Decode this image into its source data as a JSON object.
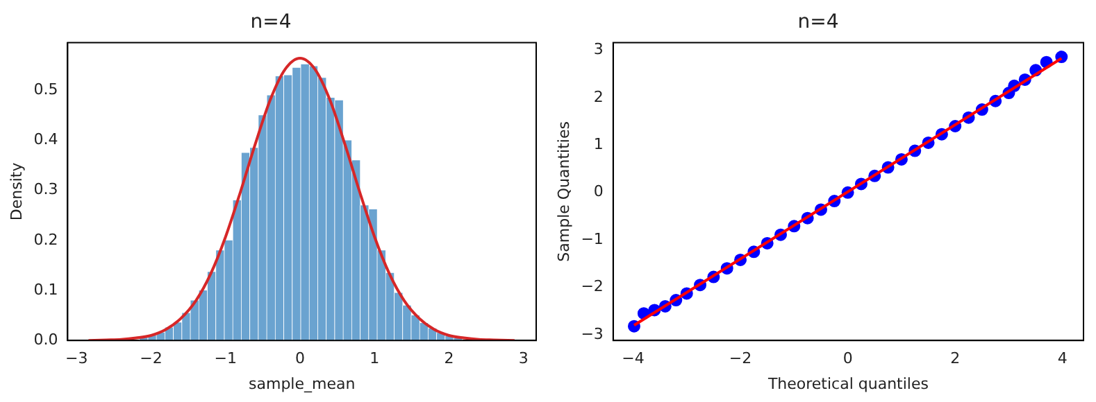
{
  "chart_data": [
    {
      "type": "histogram",
      "title": "n=4",
      "xlabel": "sample_mean",
      "ylabel": "Density",
      "color": "#6aa3d0",
      "bins": [
        -2.84,
        -2.726,
        -2.612,
        -2.498,
        -2.384,
        -2.27,
        -2.156,
        -2.042,
        -1.928,
        -1.814,
        -1.7,
        -1.586,
        -1.472,
        -1.358,
        -1.244,
        -1.13,
        -1.016,
        -0.902,
        -0.788,
        -0.674,
        -0.56,
        -0.446,
        -0.332,
        -0.218,
        -0.104,
        0.01,
        0.124,
        0.238,
        0.352,
        0.466,
        0.58,
        0.694,
        0.808,
        0.922,
        1.036,
        1.15,
        1.264,
        1.378,
        1.492,
        1.606,
        1.72,
        1.834,
        1.948,
        2.062,
        2.176,
        2.29,
        2.404,
        2.518,
        2.632,
        2.746,
        2.86
      ],
      "values": [
        0,
        0,
        0,
        0.001,
        null,
        null,
        0.007,
        0.011,
        0.016,
        0.026,
        0.036,
        0.055,
        0.08,
        0.1,
        0.137,
        0.18,
        0.2,
        0.28,
        0.375,
        0.385,
        0.45,
        0.49,
        0.528,
        0.53,
        0.545,
        0.552,
        0.548,
        0.525,
        0.485,
        0.48,
        0.4,
        0.36,
        0.27,
        0.262,
        0.18,
        0.135,
        0.095,
        0.07,
        0.05,
        0.035,
        0.024,
        0.015,
        0.009,
        0.005,
        null,
        null,
        0.001,
        0,
        0,
        0
      ],
      "series": [
        {
          "type": "line",
          "color": "#d62728",
          "x": [
            -2.84,
            -2.6,
            -2.4,
            -2.2,
            -2.0,
            -1.8,
            -1.6,
            -1.4,
            -1.2,
            -1.0,
            -0.8,
            -0.6,
            -0.4,
            -0.2,
            0,
            0.2,
            0.4,
            0.6,
            0.8,
            1.0,
            1.2,
            1.4,
            1.6,
            1.8,
            2.0,
            2.2,
            2.4,
            2.6,
            2.88
          ],
          "values": [
            0,
            0.001,
            0.002,
            0.005,
            0.01,
            0.022,
            0.044,
            0.079,
            0.133,
            0.207,
            0.297,
            0.393,
            0.481,
            0.542,
            0.564,
            0.542,
            0.481,
            0.393,
            0.297,
            0.207,
            0.133,
            0.079,
            0.044,
            0.022,
            0.01,
            0.005,
            0.002,
            0.001,
            0
          ]
        }
      ],
      "xlim": [
        -3.12,
        3.17
      ],
      "ylim": [
        0,
        0.595
      ],
      "xticks": [
        {
          "value": -3,
          "label": "−3"
        },
        {
          "value": -2,
          "label": "−2"
        },
        {
          "value": -1,
          "label": "−1"
        },
        0,
        1,
        2,
        3
      ],
      "yticks": [
        {
          "value": 0,
          "label": "0.0"
        },
        0.1,
        0.2,
        0.3,
        0.4,
        0.5
      ],
      "grid": false,
      "legend": false
    },
    {
      "type": "scatter",
      "title": "n=4",
      "xlabel": "Theoretical quantiles",
      "ylabel": "Sample Quantities",
      "series": [
        {
          "type": "scatter",
          "color": "#0000ff",
          "marker": "circle",
          "x": [
            -3.98,
            -3.8,
            -3.6,
            -3.4,
            -3.2,
            -3.0,
            -2.75,
            -2.5,
            -2.25,
            -2,
            -1.75,
            -1.5,
            -1.25,
            -1,
            -0.75,
            -0.5,
            -0.25,
            0,
            0.25,
            0.5,
            0.75,
            1,
            1.25,
            1.5,
            1.75,
            2,
            2.25,
            2.5,
            2.75,
            3,
            3.1,
            3.3,
            3.5,
            3.7,
            3.98
          ],
          "values": [
            -2.82,
            -2.55,
            -2.48,
            -2.4,
            -2.27,
            -2.13,
            -1.95,
            -1.78,
            -1.6,
            -1.42,
            -1.25,
            -1.07,
            -0.89,
            -0.71,
            -0.54,
            -0.36,
            -0.18,
            0,
            0.18,
            0.35,
            0.53,
            0.7,
            0.88,
            1.05,
            1.23,
            1.4,
            1.58,
            1.75,
            1.93,
            2.1,
            2.25,
            2.38,
            2.58,
            2.75,
            2.86
          ]
        },
        {
          "type": "line",
          "color": "#ff0000",
          "x": [
            -3.98,
            3.98
          ],
          "values": [
            -2.8,
            2.83
          ]
        }
      ],
      "xlim": [
        -4.37,
        4.39
      ],
      "ylim": [
        -3.12,
        3.16
      ],
      "xticks": [
        {
          "value": -4,
          "label": "−4"
        },
        {
          "value": -2,
          "label": "−2"
        },
        0,
        2,
        4
      ],
      "yticks": [
        {
          "value": -3,
          "label": "−3"
        },
        {
          "value": -2,
          "label": "−2"
        },
        {
          "value": -1,
          "label": "−1"
        },
        0,
        1,
        2,
        3
      ],
      "grid": false,
      "legend": false
    }
  ]
}
